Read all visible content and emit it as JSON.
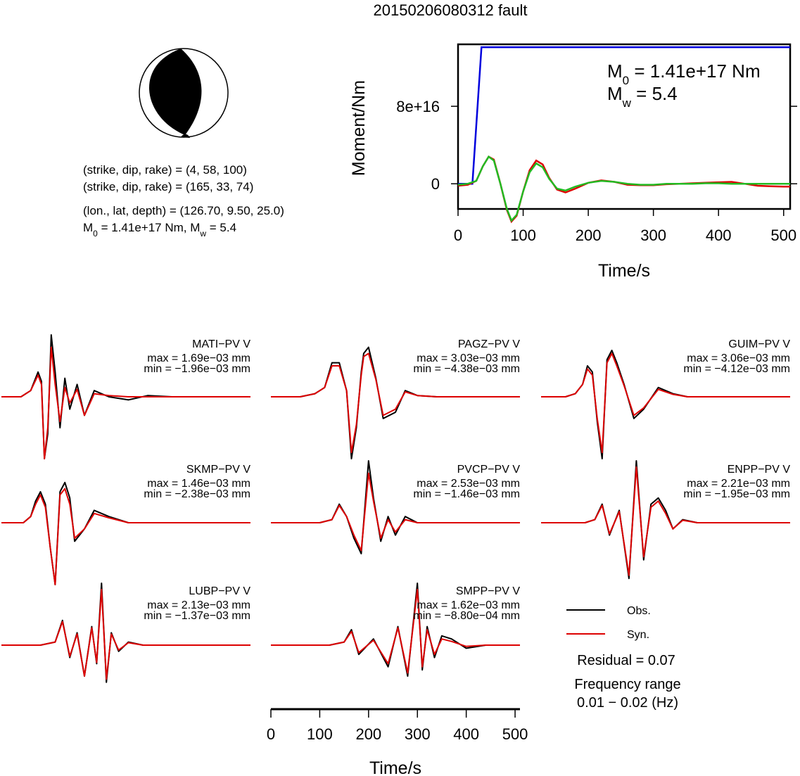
{
  "title": "20150206080312 fault",
  "focal": {
    "colors": {
      "fill": "#000000",
      "background": "#ffffff"
    },
    "planes": [
      "(strike, dip, rake) = (4, 58, 100)",
      "(strike, dip, rake) = (165, 33, 74)"
    ],
    "location": "(lon., lat, depth) = (126.70, 9.50, 25.0)",
    "moment_text": {
      "m0_label": "M",
      "m0_sub": "0",
      "m0_value": " = 1.41e+17 Nm, M",
      "mw_sub": "w",
      "mw_value": " = 5.4"
    }
  },
  "chart_data": [
    {
      "type": "line",
      "name": "moment-function",
      "xlabel": "Time/s",
      "ylabel": "Moment/Nm",
      "xlim": [
        0,
        510
      ],
      "ylim": [
        -2.6e+16,
        1.44e+17
      ],
      "xticks": [
        0,
        100,
        200,
        300,
        400,
        500
      ],
      "xtick_labels": [
        "0",
        "100",
        "200",
        "300",
        "400",
        "500"
      ],
      "yticks": [
        0,
        8e+16
      ],
      "ytick_labels": [
        "0",
        "8e+16"
      ],
      "annotation": {
        "m0_prefix": "M",
        "m0_sub": "0",
        "m0_text": " = 1.41e+17 Nm",
        "mw_prefix": "M",
        "mw_sub": "w",
        "mw_text": " = 5.4"
      },
      "series": [
        {
          "color": "#0000dd",
          "x": [
            0,
            22,
            28,
            36,
            510
          ],
          "y": [
            0,
            0,
            6e+16,
            1.41e+17,
            1.41e+17
          ]
        },
        {
          "color": "#dd0000",
          "x": [
            0,
            15,
            28,
            38,
            47,
            55,
            65,
            75,
            82,
            90,
            100,
            110,
            120,
            130,
            140,
            152,
            165,
            180,
            200,
            220,
            240,
            260,
            280,
            300,
            320,
            340,
            360,
            380,
            400,
            420,
            440,
            460,
            480,
            500,
            510
          ],
          "y": [
            -2000000000000000.0,
            -1000000000000000.0,
            3000000000000000.0,
            1.8e+16,
            2.8e+16,
            2.5e+16,
            0,
            -2.7e+16,
            -3.9e+16,
            -3.3e+16,
            -8000000000000000.0,
            1.4e+16,
            2.4e+16,
            2e+16,
            6000000000000000.0,
            -6000000000000000.0,
            -9000000000000000.0,
            -5000000000000000.0,
            1000000000000000.0,
            3500000000000000.0,
            2000000000000000.0,
            -1000000000000000.0,
            -1500000000000000.0,
            -1500000000000000.0,
            -500000000000000.0,
            0,
            500000000000000.0,
            1000000000000000.0,
            1500000000000000.0,
            2000000000000000.0,
            0,
            -2000000000000000.0,
            -2500000000000000.0,
            -3000000000000000.0,
            -3000000000000000.0
          ]
        },
        {
          "color": "#22bb22",
          "x": [
            0,
            15,
            28,
            38,
            47,
            55,
            65,
            75,
            82,
            90,
            100,
            110,
            120,
            130,
            140,
            152,
            165,
            180,
            200,
            220,
            240,
            260,
            280,
            300,
            320,
            340,
            360,
            380,
            400,
            420,
            440,
            460,
            480,
            500,
            510
          ],
          "y": [
            -1000000000000000.0,
            0,
            3000000000000000.0,
            1.8e+16,
            2.8e+16,
            2.4e+16,
            0,
            -2.6e+16,
            -3.8e+16,
            -3.2e+16,
            -8000000000000000.0,
            1.2e+16,
            2.1e+16,
            1.7e+16,
            5000000000000000.0,
            -5000000000000000.0,
            -7000000000000000.0,
            -3000000000000000.0,
            1000000000000000.0,
            3000000000000000.0,
            2000000000000000.0,
            0,
            -1000000000000000.0,
            -1000000000000000.0,
            0,
            0,
            0,
            500000000000000.0,
            500000000000000.0,
            0,
            0,
            0,
            0,
            0,
            0
          ]
        }
      ]
    },
    {
      "type": "line",
      "name": "waveforms",
      "xlabel": "Time/s",
      "xlim": [
        0,
        510
      ],
      "xticks": [
        0,
        100,
        200,
        300,
        400,
        500
      ],
      "xtick_labels": [
        "0",
        "100",
        "200",
        "300",
        "400",
        "500"
      ],
      "colors": {
        "obs": "#000000",
        "syn": "#dd0000"
      },
      "stations": [
        {
          "name": "MATI−PV V",
          "max": "max = 1.69e−03 mm",
          "min": "min = −1.96e−03 mm",
          "x": [
            0,
            40,
            60,
            75,
            82,
            88,
            95,
            102,
            110,
            120,
            130,
            140,
            155,
            170,
            190,
            220,
            260,
            300,
            350,
            400,
            460,
            510
          ],
          "obs": [
            0,
            0,
            0.1,
            0.4,
            0.25,
            -1.0,
            -0.6,
            1.0,
            0.4,
            -0.5,
            0.3,
            -0.2,
            0.2,
            -0.3,
            0.1,
            0,
            -0.05,
            0.02,
            0,
            0,
            0,
            0
          ],
          "syn": [
            0,
            0,
            0.1,
            0.35,
            0.2,
            -1.0,
            -0.5,
            0.8,
            0.2,
            -0.4,
            0.15,
            -0.1,
            0.12,
            -0.3,
            0.05,
            0.02,
            0,
            0,
            0,
            0,
            0,
            0
          ]
        },
        {
          "name": "PAGZ−PV V",
          "max": "max = 3.03e−03 mm",
          "min": "min = −4.38e−03 mm",
          "x": [
            0,
            60,
            90,
            110,
            125,
            140,
            155,
            165,
            175,
            185,
            190,
            200,
            215,
            230,
            255,
            275,
            300,
            340,
            380,
            420,
            470,
            510
          ],
          "obs": [
            0,
            0,
            0.05,
            0.15,
            0.55,
            0.55,
            0.1,
            -1.0,
            -0.5,
            0.4,
            0.7,
            0.8,
            0.3,
            -0.35,
            -0.25,
            0.1,
            0.02,
            0,
            0,
            0,
            0,
            0
          ],
          "syn": [
            0,
            0,
            0.05,
            0.15,
            0.5,
            0.5,
            0.1,
            -0.9,
            -0.45,
            0.35,
            0.65,
            0.7,
            0.28,
            -0.3,
            -0.2,
            0.08,
            0.02,
            0,
            0,
            0,
            0,
            0
          ]
        },
        {
          "name": "GUIM−PV V",
          "max": "max = 3.06e−03 mm",
          "min": "min = −4.12e−03 mm",
          "x": [
            0,
            50,
            70,
            85,
            95,
            105,
            115,
            125,
            135,
            145,
            155,
            170,
            190,
            210,
            240,
            270,
            300,
            340,
            380,
            420,
            470,
            510
          ],
          "obs": [
            0,
            0,
            0.05,
            0.2,
            0.5,
            0.4,
            -0.4,
            -1.0,
            0.6,
            0.75,
            0.55,
            0.2,
            -0.35,
            -0.2,
            0.15,
            0.05,
            0,
            0,
            0,
            0,
            0,
            0
          ],
          "syn": [
            0,
            0,
            0.05,
            0.2,
            0.45,
            0.35,
            -0.35,
            -0.9,
            0.55,
            0.7,
            0.5,
            0.18,
            -0.3,
            -0.18,
            0.12,
            0.04,
            0,
            0,
            0,
            0,
            0,
            0
          ]
        },
        {
          "name": "SKMP−PV V",
          "max": "max = 1.46e−03 mm",
          "min": "min = −2.38e−03 mm",
          "x": [
            0,
            45,
            60,
            70,
            80,
            90,
            100,
            110,
            120,
            130,
            140,
            150,
            170,
            190,
            220,
            260,
            300,
            340,
            380,
            420,
            470,
            510
          ],
          "obs": [
            0,
            0,
            0.1,
            0.35,
            0.5,
            0.3,
            -0.4,
            -1.0,
            0.5,
            0.65,
            0.4,
            -0.3,
            -0.1,
            0.2,
            0.1,
            0,
            0,
            0,
            0,
            0,
            0,
            0
          ],
          "syn": [
            0,
            0,
            0.1,
            0.3,
            0.45,
            0.25,
            -0.4,
            -1.0,
            0.45,
            0.55,
            0.3,
            -0.25,
            -0.1,
            0.15,
            0.08,
            0,
            0,
            0,
            0,
            0,
            0,
            0
          ]
        },
        {
          "name": "PVCP−PV V",
          "max": "max = 2.53e−03 mm",
          "min": "min = −1.46e−03 mm",
          "x": [
            0,
            100,
            125,
            140,
            155,
            170,
            185,
            200,
            210,
            225,
            240,
            255,
            275,
            300,
            330,
            360,
            400,
            450,
            510
          ],
          "obs": [
            0,
            0,
            0.05,
            0.3,
            0.1,
            -0.25,
            -0.5,
            1.0,
            0.4,
            -0.3,
            0.1,
            -0.2,
            0.1,
            0,
            0,
            0,
            0,
            0,
            0
          ],
          "syn": [
            0,
            0,
            0.05,
            0.28,
            0.1,
            -0.2,
            -0.45,
            0.8,
            0.35,
            -0.25,
            0.05,
            -0.15,
            0.05,
            0,
            0,
            0,
            0,
            0,
            0
          ]
        },
        {
          "name": "ENPP−PV V",
          "max": "max = 2.21e−03 mm",
          "min": "min = −1.95e−03 mm",
          "x": [
            0,
            90,
            110,
            125,
            140,
            160,
            180,
            195,
            210,
            225,
            240,
            255,
            270,
            290,
            320,
            360,
            400,
            450,
            510
          ],
          "obs": [
            0,
            0,
            0.05,
            0.3,
            -0.2,
            0.2,
            -0.9,
            1.0,
            -0.6,
            0.3,
            0.4,
            0.2,
            -0.1,
            0.05,
            0,
            0,
            0,
            0,
            0
          ],
          "syn": [
            0,
            0,
            0.05,
            0.28,
            -0.18,
            0.18,
            -0.85,
            0.9,
            -0.55,
            0.25,
            0.35,
            0.15,
            -0.1,
            0.04,
            0,
            0,
            0,
            0,
            0
          ]
        },
        {
          "name": "LUBP−PV V",
          "max": "max = 2.13e−03 mm",
          "min": "min = −1.37e−03 mm",
          "x": [
            0,
            80,
            110,
            125,
            140,
            155,
            170,
            185,
            195,
            205,
            215,
            225,
            240,
            260,
            290,
            330,
            380,
            430,
            510
          ],
          "obs": [
            0,
            0,
            0.05,
            0.4,
            -0.2,
            0.2,
            -0.5,
            0.3,
            -0.3,
            1.0,
            -0.6,
            0.2,
            -0.1,
            0.05,
            0,
            0,
            0,
            0,
            0
          ],
          "syn": [
            0,
            0,
            0.05,
            0.38,
            -0.18,
            0.18,
            -0.5,
            0.28,
            -0.28,
            0.9,
            -0.55,
            0.18,
            -0.08,
            0.04,
            0,
            0,
            0,
            0,
            0
          ]
        },
        {
          "name": "SMPP−PV V",
          "max": "max = 1.62e−03 mm",
          "min": "min = −8.80e−04 mm",
          "x": [
            0,
            120,
            150,
            165,
            180,
            210,
            240,
            260,
            280,
            300,
            310,
            320,
            335,
            350,
            370,
            400,
            440,
            470,
            510
          ],
          "obs": [
            0,
            0,
            0.05,
            0.25,
            -0.15,
            0.1,
            -0.35,
            0.3,
            -0.5,
            1.0,
            -0.4,
            0.3,
            -0.2,
            0.15,
            0.1,
            -0.05,
            0,
            0,
            0
          ],
          "syn": [
            0,
            0,
            0.05,
            0.22,
            -0.12,
            0.08,
            -0.3,
            0.28,
            -0.45,
            0.9,
            -0.35,
            0.25,
            -0.15,
            0.1,
            0.06,
            -0.02,
            0,
            0,
            0
          ]
        }
      ]
    }
  ],
  "legend": {
    "obs": "Obs.",
    "syn": "Syn."
  },
  "residual": "Residual = 0.07",
  "frequency": {
    "label": "Frequency range",
    "value": "0.01 − 0.02 (Hz)"
  }
}
